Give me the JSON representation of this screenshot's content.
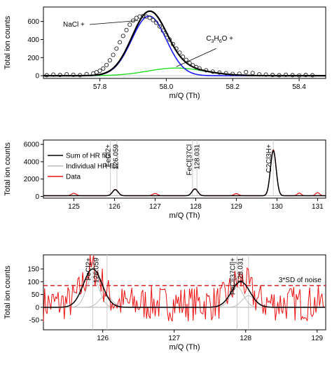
{
  "chart_data": [
    {
      "type": "line",
      "xlabel": "m/Q (Th)",
      "ylabel": "Total ion counts",
      "xlim": [
        57.63,
        58.48
      ],
      "ylim": [
        -30,
        760
      ],
      "x_ticks": [
        "57.8",
        "58.0",
        "58.2",
        "58.4"
      ],
      "y_ticks": [
        "0",
        "200",
        "400",
        "600"
      ],
      "annotations": [
        {
          "text": "NaCl +"
        },
        {
          "text_base": "C",
          "sub1": "3",
          "mid1": "H",
          "sub2": "6",
          "end": "O +"
        }
      ],
      "series": [
        {
          "color": "#000000",
          "kind": "fit-sum",
          "peaks": [
            [
              57.948,
              660,
              0.052
            ],
            [
              58.03,
              85,
              0.085
            ]
          ]
        },
        {
          "color": "#1a1aff",
          "kind": "peak",
          "peaks": [
            [
              57.948,
              660,
              0.052
            ]
          ]
        },
        {
          "color": "#22dd22",
          "kind": "peak",
          "peaks": [
            [
              58.03,
              85,
              0.085
            ]
          ]
        },
        {
          "kind": "markers",
          "x": [
            57.64,
            57.66,
            57.68,
            57.7,
            57.72,
            57.74,
            57.76,
            57.78,
            57.79,
            57.8,
            57.81,
            57.82,
            57.83,
            57.84,
            57.85,
            57.86,
            57.87,
            57.88,
            57.89,
            57.9,
            57.91,
            57.92,
            57.93,
            57.94,
            57.95,
            57.96,
            57.97,
            57.98,
            57.99,
            58.0,
            58.01,
            58.02,
            58.03,
            58.04,
            58.05,
            58.06,
            58.07,
            58.08,
            58.09,
            58.1,
            58.12,
            58.14,
            58.16,
            58.18,
            58.2,
            58.22,
            58.24,
            58.26,
            58.28,
            58.3,
            58.32,
            58.34,
            58.36,
            58.38,
            58.4,
            58.42,
            58.44
          ],
          "y": [
            5,
            12,
            8,
            15,
            10,
            6,
            18,
            25,
            38,
            55,
            80,
            118,
            170,
            230,
            300,
            370,
            440,
            505,
            565,
            610,
            640,
            655,
            660,
            655,
            640,
            615,
            585,
            545,
            500,
            455,
            400,
            350,
            300,
            255,
            210,
            175,
            140,
            115,
            95,
            80,
            60,
            45,
            35,
            28,
            20,
            22,
            40,
            30,
            15,
            12,
            8,
            5,
            10,
            6,
            3,
            8,
            5
          ]
        }
      ]
    },
    {
      "type": "line",
      "xlabel": "m/Q (Th)",
      "ylabel": "Total ion counts",
      "xlim": [
        124.25,
        131.2
      ],
      "ylim": [
        -200,
        6500
      ],
      "x_ticks": [
        "125",
        "126",
        "127",
        "128",
        "129",
        "130",
        "131"
      ],
      "y_ticks": [
        "0",
        "2000",
        "4000",
        "6000"
      ],
      "legend": [
        "Sum of HR fits",
        "Individual HR fits",
        "Data"
      ],
      "legend_colors": [
        "#000000",
        "#bbbbbb",
        "#ee1111"
      ],
      "peak_labels": [
        {
          "x": 125.95,
          "lines": [
            "FeCl2+",
            "126.059"
          ]
        },
        {
          "x": 127.95,
          "lines": [
            "FeCl[37Cl",
            "128.031"
          ]
        },
        {
          "x": 129.91,
          "lines": [
            "C2Cl3H+"
          ]
        }
      ],
      "fit_peaks": [
        [
          126.02,
          700,
          0.07
        ],
        [
          127.98,
          780,
          0.07
        ],
        [
          129.91,
          5200,
          0.07
        ]
      ],
      "data_peaks": [
        [
          125.0,
          280,
          0.06
        ],
        [
          126.02,
          720,
          0.07
        ],
        [
          127.0,
          260,
          0.06
        ],
        [
          127.98,
          800,
          0.07
        ],
        [
          129.0,
          240,
          0.06
        ],
        [
          129.91,
          5300,
          0.07
        ],
        [
          130.55,
          300,
          0.05
        ],
        [
          131.0,
          350,
          0.05
        ]
      ],
      "baseline": 80
    },
    {
      "type": "line",
      "xlabel": "m/Q (Th)",
      "ylabel": "Total ion counts",
      "xlim": [
        125.17,
        129.12
      ],
      "ylim": [
        -88,
        205
      ],
      "x_ticks": [
        "126",
        "127",
        "128",
        "129"
      ],
      "y_ticks": [
        "-50",
        "0",
        "50",
        "100",
        "150"
      ],
      "threshold": 85,
      "threshold_label": "3*SD of noise",
      "peak_labels": [
        {
          "x": 125.86,
          "lines": [
            "FeCl2+",
            "126.059"
          ]
        },
        {
          "x": 127.88,
          "lines": [
            "FeCl[37Cl]+",
            "128.031"
          ]
        }
      ],
      "sum_peaks": [
        [
          125.86,
          150,
          0.13
        ],
        [
          127.93,
          100,
          0.13
        ]
      ],
      "indiv_peaks": [
        [
          125.86,
          120,
          0.09
        ],
        [
          126.04,
          45,
          0.09
        ],
        [
          127.88,
          80,
          0.09
        ],
        [
          128.04,
          45,
          0.09
        ]
      ],
      "noise_amplitude": 70,
      "noise_offset": 15
    }
  ]
}
